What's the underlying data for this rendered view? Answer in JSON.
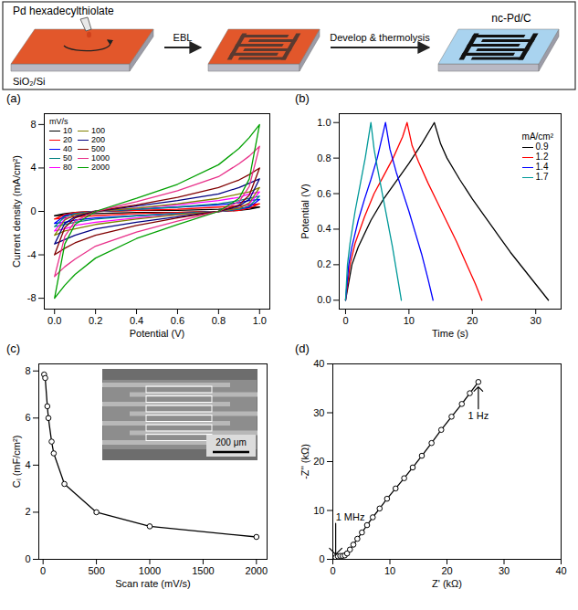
{
  "schematic": {
    "precursor": "Pd hexadecylthiolate",
    "substrate": "SiO₂/Si",
    "step1": "EBL",
    "step2": "Develop & thermolysis",
    "product": "nc-Pd/C"
  },
  "chart_data": [
    {
      "type": "line",
      "title": "(a)",
      "xlabel": "Potential (V)",
      "ylabel": "Current density (mA/cm²)",
      "xlim": [
        -0.05,
        1.05
      ],
      "xticks": [
        {
          "value": 0,
          "label": "0.0"
        },
        {
          "value": 0.2,
          "label": "0.2"
        },
        {
          "value": 0.4,
          "label": "0.4"
        },
        {
          "value": 0.6,
          "label": "0.6"
        },
        {
          "value": 0.8,
          "label": "0.8"
        },
        {
          "value": 1,
          "label": "1.0"
        }
      ],
      "ylim": [
        -9,
        9
      ],
      "yticks": [
        -8,
        -4,
        0,
        4,
        8
      ],
      "legend": "top-left",
      "legend_title": "mV/s",
      "line_style": "solid",
      "x": [
        0,
        0.05,
        0.1,
        0.2,
        0.4,
        0.6,
        0.8,
        0.9,
        0.95,
        1,
        1,
        0.95,
        0.9,
        0.8,
        0.6,
        0.4,
        0.2,
        0.1,
        0.05,
        0
      ],
      "series": [
        {
          "name": "10",
          "color": "#000000",
          "values": [
            -0.4,
            -0.2,
            -0.1,
            0,
            0.1,
            0.1,
            0.2,
            0.3,
            0.35,
            0.4,
            0.4,
            0.2,
            0.1,
            0,
            -0.1,
            -0.1,
            -0.2,
            -0.3,
            -0.35,
            -0.4
          ]
        },
        {
          "name": "20",
          "color": "#ff0000",
          "values": [
            -0.7,
            -0.3,
            -0.1,
            0,
            0.1,
            0.2,
            0.4,
            0.5,
            0.6,
            0.7,
            0.7,
            0.3,
            0.1,
            0,
            -0.1,
            -0.2,
            -0.4,
            -0.5,
            -0.6,
            -0.7
          ]
        },
        {
          "name": "40",
          "color": "#0000ff",
          "values": [
            -1.1,
            -0.4,
            -0.2,
            0,
            0.2,
            0.4,
            0.6,
            0.8,
            1,
            1.1,
            1.1,
            0.4,
            0.2,
            0,
            -0.2,
            -0.4,
            -0.6,
            -0.8,
            -1,
            -1.1
          ]
        },
        {
          "name": "50",
          "color": "#008080",
          "values": [
            -1.4,
            -0.5,
            -0.2,
            0,
            0.2,
            0.4,
            0.7,
            1,
            1.2,
            1.4,
            1.4,
            0.5,
            0.2,
            0,
            -0.2,
            -0.4,
            -0.7,
            -1,
            -1.2,
            -1.4
          ]
        },
        {
          "name": "80",
          "color": "#ff00ff",
          "values": [
            -1.8,
            -0.7,
            -0.3,
            0,
            0.3,
            0.6,
            1,
            1.3,
            1.6,
            1.8,
            1.8,
            0.7,
            0.3,
            0,
            -0.3,
            -0.6,
            -1,
            -1.3,
            -1.6,
            -1.8
          ]
        },
        {
          "name": "100",
          "color": "#808000",
          "values": [
            -2.2,
            -0.8,
            -0.3,
            0,
            0.3,
            0.7,
            1.2,
            1.6,
            1.8,
            2.2,
            2.2,
            0.8,
            0.3,
            0,
            -0.3,
            -0.7,
            -1.2,
            -1.6,
            -1.8,
            -2.2
          ]
        },
        {
          "name": "200",
          "color": "#000080",
          "values": [
            -3,
            -1.1,
            -0.5,
            0,
            0.5,
            1,
            1.6,
            2.2,
            2.6,
            3,
            3,
            1.1,
            0.5,
            0,
            -0.5,
            -1,
            -1.6,
            -2.2,
            -2.6,
            -3
          ]
        },
        {
          "name": "500",
          "color": "#800000",
          "values": [
            -4,
            -1.5,
            -0.6,
            0,
            0.6,
            1.3,
            2.2,
            2.9,
            3.4,
            4,
            4,
            1.5,
            0.6,
            0,
            -0.6,
            -1.3,
            -2.2,
            -2.9,
            -3.4,
            -4
          ]
        },
        {
          "name": "1000",
          "color": "#e8318a",
          "values": [
            -6,
            -2.3,
            -0.9,
            0,
            0.9,
            1.9,
            3.2,
            4.4,
            5.1,
            6,
            6,
            2.3,
            0.9,
            0,
            -0.9,
            -1.9,
            -3.2,
            -4.4,
            -5.1,
            -6
          ]
        },
        {
          "name": "2000",
          "color": "#00a000",
          "values": [
            -8,
            -3,
            -1.2,
            0,
            1.2,
            2.5,
            4.3,
            5.8,
            6.8,
            8,
            8,
            3,
            1.2,
            0,
            -1.2,
            -2.5,
            -4.3,
            -5.8,
            -6.8,
            -8
          ]
        }
      ]
    },
    {
      "type": "line",
      "title": "(b)",
      "xlabel": "Time (s)",
      "ylabel": "Potential (V)",
      "xlim": [
        -1,
        34
      ],
      "xticks": [
        0,
        10,
        20,
        30
      ],
      "ylim": [
        -0.05,
        1.05
      ],
      "yticks": [
        {
          "value": 0,
          "label": "0.0"
        },
        {
          "value": 0.2,
          "label": "0.2"
        },
        {
          "value": 0.4,
          "label": "0.4"
        },
        {
          "value": 0.6,
          "label": "0.6"
        },
        {
          "value": 0.8,
          "label": "0.8"
        },
        {
          "value": 1,
          "label": "1.0"
        }
      ],
      "legend": "top-right",
      "legend_title": "mA/cm²",
      "line_style": "solid",
      "series": [
        {
          "name": "0.9",
          "color": "#000000",
          "x": [
            0,
            1,
            2,
            4,
            6,
            8,
            10,
            12,
            14,
            15,
            16,
            18,
            20,
            22,
            24,
            26,
            28,
            30,
            32
          ],
          "values": [
            0,
            0.2,
            0.3,
            0.45,
            0.57,
            0.67,
            0.77,
            0.88,
            1.0,
            0.88,
            0.8,
            0.68,
            0.57,
            0.47,
            0.37,
            0.27,
            0.18,
            0.09,
            0
          ]
        },
        {
          "name": "1.2",
          "color": "#ff0000",
          "x": [
            0,
            0.7,
            1.5,
            3,
            4.5,
            6,
            7.5,
            9,
            9.7,
            10.5,
            11.5,
            13,
            14.5,
            16,
            17.5,
            19,
            20.5,
            21.5
          ],
          "values": [
            0,
            0.2,
            0.32,
            0.47,
            0.6,
            0.7,
            0.8,
            0.92,
            1.0,
            0.87,
            0.78,
            0.66,
            0.55,
            0.44,
            0.33,
            0.21,
            0.09,
            0
          ]
        },
        {
          "name": "1.4",
          "color": "#0000ff",
          "x": [
            0,
            0.5,
            1,
            2,
            3,
            4,
            5,
            6.3,
            7,
            8,
            9,
            10,
            11,
            12,
            13,
            13.8
          ],
          "values": [
            0,
            0.2,
            0.3,
            0.45,
            0.57,
            0.68,
            0.8,
            1.0,
            0.85,
            0.72,
            0.61,
            0.5,
            0.38,
            0.26,
            0.12,
            0
          ]
        },
        {
          "name": "1.7",
          "color": "#009999",
          "x": [
            0,
            0.3,
            0.7,
            1.5,
            2.3,
            3.1,
            4,
            4.5,
            5,
            5.8,
            6.6,
            7.4,
            8.1,
            8.8
          ],
          "values": [
            0,
            0.2,
            0.32,
            0.5,
            0.65,
            0.8,
            1.0,
            0.85,
            0.75,
            0.6,
            0.45,
            0.3,
            0.15,
            0
          ]
        }
      ]
    },
    {
      "type": "line",
      "title": "(c)",
      "xlabel": "Scan rate (mV/s)",
      "ylabel": "Cₗ (mF/cm²)",
      "xlim": [
        -40,
        2100
      ],
      "xticks": [
        0,
        500,
        1000,
        1500,
        2000
      ],
      "ylim": [
        0,
        8.3
      ],
      "yticks": [
        0,
        2,
        4,
        6,
        8
      ],
      "color": "#000000",
      "marker": "circle",
      "line_style": "solid",
      "x": [
        10,
        20,
        40,
        50,
        80,
        100,
        200,
        500,
        1000,
        2000
      ],
      "values": [
        7.85,
        7.7,
        6.5,
        6.0,
        5.0,
        4.5,
        3.2,
        2.0,
        1.4,
        0.95
      ],
      "inset": {
        "scale_bar": "200 μm"
      }
    },
    {
      "type": "line",
      "title": "(d)",
      "xlabel": "Z' (kΩ)",
      "ylabel": "-Z'' (kΩ)",
      "xlim": [
        0,
        40
      ],
      "xticks": [
        0,
        10,
        20,
        30,
        40
      ],
      "ylim": [
        0,
        40
      ],
      "yticks": [
        0,
        10,
        20,
        30,
        40
      ],
      "color": "#000000",
      "marker": "circle",
      "line_style": "solid",
      "x": [
        0.2,
        0.5,
        0.9,
        1.3,
        1.7,
        2.1,
        2.5,
        3,
        3.6,
        4.3,
        5.1,
        6,
        7,
        8.2,
        9.5,
        11,
        12.5,
        14,
        15.6,
        17.3,
        19,
        20.8,
        22.6,
        24,
        25.5
      ],
      "values": [
        0.1,
        0.4,
        0.6,
        0.7,
        0.7,
        0.8,
        1.2,
        2,
        3,
        4.2,
        5.5,
        7,
        8.6,
        10.4,
        12.4,
        14.5,
        16.6,
        18.8,
        21.2,
        23.8,
        26.5,
        29.2,
        31.8,
        34,
        36.3
      ],
      "annotations": [
        {
          "text": "1 MHz",
          "x": 0.5,
          "y": 1.0
        },
        {
          "text": "1 Hz",
          "x": 25.5,
          "y": 35.3
        }
      ]
    }
  ]
}
